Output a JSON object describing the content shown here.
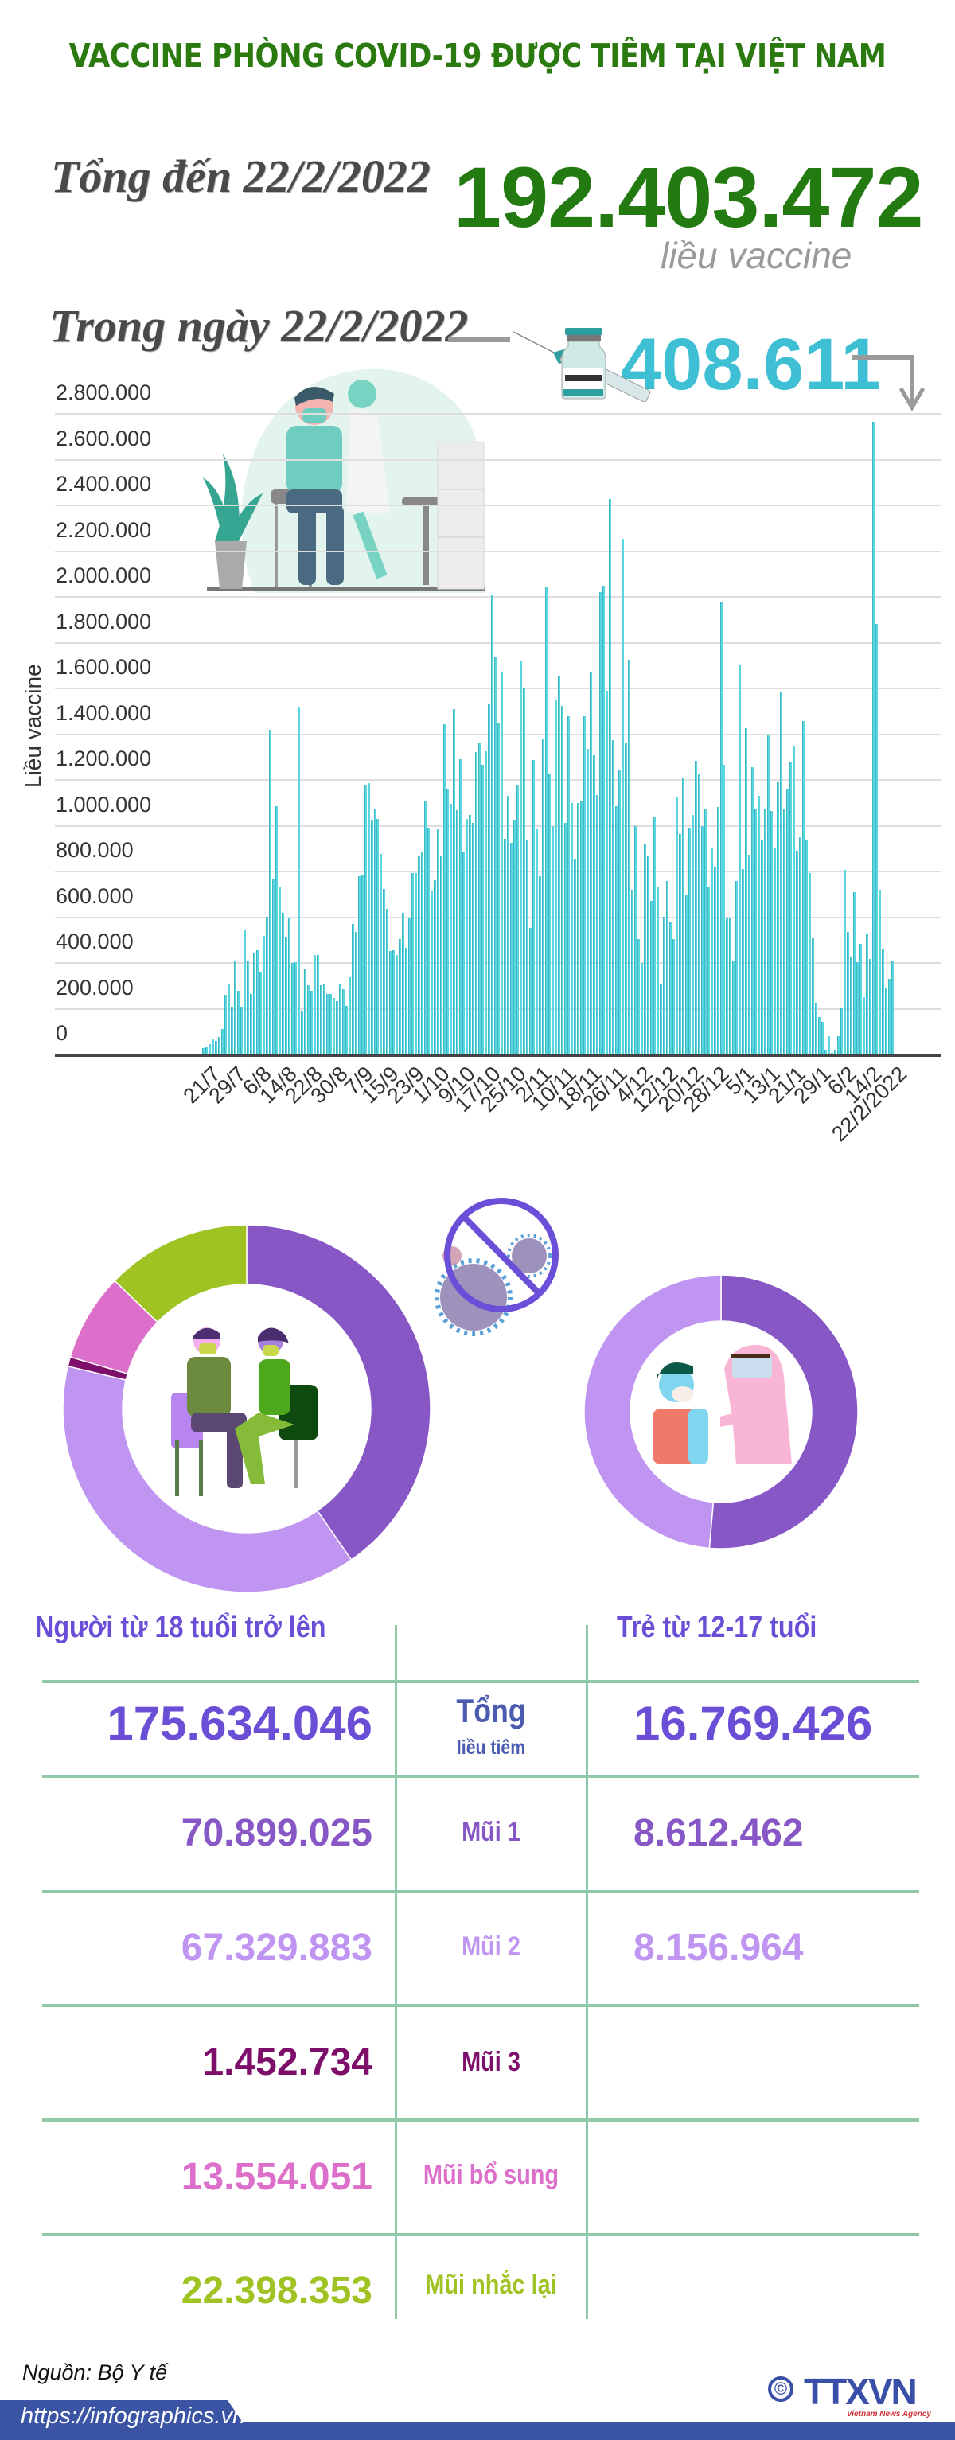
{
  "header": {
    "title": "VACCINE PHÒNG COVID-19 ĐƯỢC TIÊM TẠI VIỆT NAM"
  },
  "summary": {
    "total_label": "Tổng đến 22/2/2022",
    "total_value": "192.403.472",
    "total_unit": "liều vaccine",
    "daily_label": "Trong ngày 22/2/2022",
    "daily_value": "408.611"
  },
  "colors": {
    "title_green": "#2a7a10",
    "total_green": "#237a10",
    "daily_cyan": "#3fbfd3",
    "bar_fill": "#5ad6e0",
    "bar_edge": "#3db7c4",
    "dose1": "#8757c5",
    "dose2": "#c095f2",
    "dose3": "#7d0f6a",
    "dose_additional": "#dc6fc9",
    "dose_booster": "#9ec322",
    "header_purple": "#6a4fd6",
    "table_lines": "#8ec8a6",
    "footer_blue": "#3b55a4"
  },
  "chart_data": [
    {
      "type": "bar",
      "title": "",
      "xlabel": "",
      "ylabel": "Liều vaccine",
      "ylim": [
        0,
        2800000
      ],
      "grid": true,
      "yticks": [
        "0",
        "200.000",
        "400.000",
        "600.000",
        "800.000",
        "1.000.000",
        "1.200.000",
        "1.400.000",
        "1.600.000",
        "1.800.000",
        "2.000.000",
        "2.200.000",
        "2.400.000",
        "2.600.000",
        "2.800.000"
      ],
      "xticks": [
        "21/7",
        "29/7",
        "6/8",
        "14/8",
        "22/8",
        "30/8",
        "7/9",
        "15/9",
        "23/9",
        "1/10",
        "9/10",
        "17/10",
        "25/10",
        "2/11",
        "10/11",
        "18/11",
        "26/11",
        "4/12",
        "12/12",
        "20/12",
        "28/12",
        "5/1",
        "13/1",
        "21/1",
        "29/1",
        "6/2",
        "14/2",
        "22/2/2022"
      ],
      "x_start": "21/7/2021",
      "x_end": "22/2/2022",
      "values_unit": "thousand doses (approx.)",
      "values": [
        29,
        35,
        47,
        70,
        58,
        77,
        110,
        261,
        310,
        209,
        412,
        278,
        209,
        541,
        408,
        265,
        446,
        454,
        363,
        518,
        602,
        1418,
        769,
        1084,
        733,
        618,
        513,
        597,
        400,
        402,
        1515,
        189,
        375,
        302,
        278,
        435,
        435,
        302,
        306,
        264,
        264,
        246,
        232,
        306,
        287,
        213,
        336,
        570,
        537,
        779,
        783,
        1177,
        1185,
        1024,
        1075,
        1029,
        876,
        723,
        636,
        451,
        457,
        435,
        504,
        620,
        466,
        597,
        792,
        792,
        870,
        885,
        1107,
        991,
        713,
        763,
        985,
        867,
        1443,
        1158,
        1095,
        1510,
        1068,
        1290,
        887,
        1029,
        1047,
        1012,
        1322,
        1360,
        1266,
        1325,
        1534,
        2007,
        1739,
        1450,
        1670,
        943,
        1130,
        925,
        1023,
        1179,
        1722,
        1600,
        936,
        553,
        1287,
        984,
        779,
        1377,
        2045,
        1224,
        998,
        1548,
        1656,
        1523,
        1012,
        1478,
        1099,
        856,
        1099,
        1106,
        1478,
        1336,
        1673,
        1308,
        1134,
        2021,
        2049,
        1590,
        2428,
        1374,
        1085,
        1242,
        2254,
        1360,
        1725,
        720,
        998,
        504,
        400,
        918,
        870,
        671,
        1040,
        730,
        310,
        602,
        758,
        577,
        504,
        1127,
        963,
        1207,
        699,
        991,
        1047,
        1283,
        1228,
        998,
        1071,
        730,
        901,
        821,
        1082,
        1979,
        1266,
        598,
        598,
        407,
        758,
        1704,
        810,
        1426,
        873,
        1256,
        1071,
        1130,
        936,
        1071,
        1398,
        1064,
        904,
        1193,
        1583,
        1071,
        1158,
        1280,
        1346,
        890,
        950,
        1457,
        936,
        793,
        508,
        226,
        163,
        143,
        21,
        80,
        7,
        17,
        80,
        202,
        807,
        536,
        424,
        710,
        403,
        483,
        250,
        529,
        417,
        2765,
        1882,
        720,
        459,
        292,
        330,
        409
      ]
    },
    {
      "type": "pie",
      "title": "Người từ 18 tuổi trở lên",
      "donut": true,
      "labels": [
        "Mũi 1",
        "Mũi 2",
        "Mũi 3",
        "Mũi bổ sung",
        "Mũi nhắc lại"
      ],
      "values": [
        70899025,
        67329883,
        1452734,
        13554051,
        22398353
      ],
      "total": 175634046
    },
    {
      "type": "pie",
      "title": "Trẻ từ 12-17 tuổi",
      "donut": true,
      "labels": [
        "Mũi 1",
        "Mũi 2"
      ],
      "values": [
        8612462,
        8156964
      ],
      "total": 16769426
    }
  ],
  "table": {
    "col_adults": "Người từ 18 tuổi trở lên",
    "col_children": "Trẻ từ 12-17 tuổi",
    "rows": [
      {
        "label": "Tổng",
        "sublabel": "liều tiêm",
        "adults": "175.634.046",
        "children": "16.769.426"
      },
      {
        "label": "Mũi 1",
        "adults": "70.899.025",
        "children": "8.612.462"
      },
      {
        "label": "Mũi 2",
        "adults": "67.329.883",
        "children": "8.156.964"
      },
      {
        "label": "Mũi 3",
        "adults": "1.452.734"
      },
      {
        "label": "Mũi bổ sung",
        "adults": "13.554.051"
      },
      {
        "label": "Mũi nhắc lại",
        "adults": "22.398.353"
      }
    ]
  },
  "footer": {
    "source": "Nguồn: Bộ Y tế",
    "url": "https://infographics.vn",
    "logo_text": "TTXVN",
    "logo_sub": "Vietnam News Agency",
    "copyright_symbol": "©"
  }
}
